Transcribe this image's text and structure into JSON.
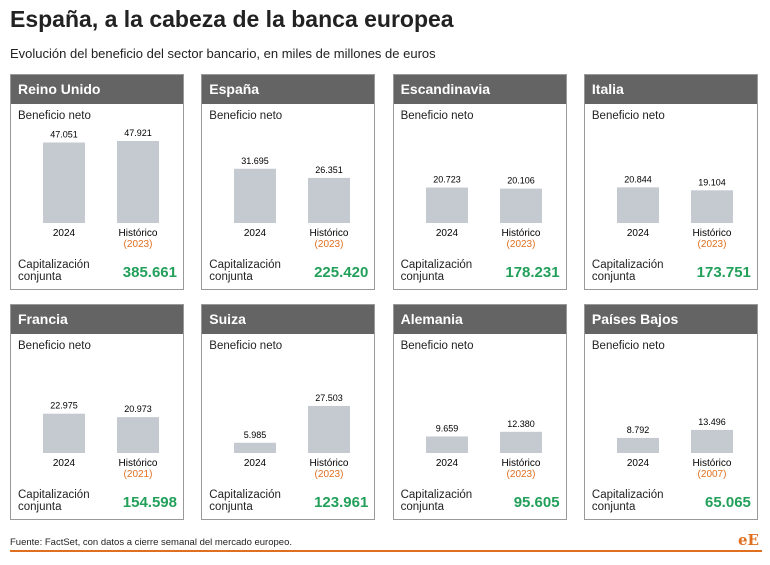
{
  "title": "España, a la cabeza de la banca europea",
  "subtitle": "Evolución del beneficio del sector bancario, en miles de millones de euros",
  "source": "Fuente: FactSet, con datos a cierre semanal del mercado europeo.",
  "logo": "eE",
  "chart_data": [
    {
      "type": "bar",
      "title": "Reino Unido",
      "subtitle": "Beneficio neto",
      "categories": [
        "2024",
        "Histórico"
      ],
      "category_notes": [
        null,
        "(2023)"
      ],
      "values": [
        47051,
        47921
      ],
      "value_labels": [
        "47.051",
        "47.921"
      ],
      "color": "#c5cad1",
      "capitalization": {
        "label": "Capitalización conjunta",
        "value": 385661,
        "value_label": "385.661"
      }
    },
    {
      "type": "bar",
      "title": "España",
      "subtitle": "Beneficio neto",
      "categories": [
        "2024",
        "Histórico"
      ],
      "category_notes": [
        null,
        "(2023)"
      ],
      "values": [
        31695,
        26351
      ],
      "value_labels": [
        "31.695",
        "26.351"
      ],
      "color": "#c5cad1",
      "capitalization": {
        "label": "Capitalización conjunta",
        "value": 225420,
        "value_label": "225.420"
      }
    },
    {
      "type": "bar",
      "title": "Escandinavia",
      "subtitle": "Beneficio neto",
      "categories": [
        "2024",
        "Histórico"
      ],
      "category_notes": [
        null,
        "(2023)"
      ],
      "values": [
        20723,
        20106
      ],
      "value_labels": [
        "20.723",
        "20.106"
      ],
      "color": "#c5cad1",
      "capitalization": {
        "label": "Capitalización conjunta",
        "value": 178231,
        "value_label": "178.231"
      }
    },
    {
      "type": "bar",
      "title": "Italia",
      "subtitle": "Beneficio neto",
      "categories": [
        "2024",
        "Histórico"
      ],
      "category_notes": [
        null,
        "(2023)"
      ],
      "values": [
        20844,
        19104
      ],
      "value_labels": [
        "20.844",
        "19.104"
      ],
      "color": "#c5cad1",
      "capitalization": {
        "label": "Capitalización conjunta",
        "value": 173751,
        "value_label": "173.751"
      }
    },
    {
      "type": "bar",
      "title": "Francia",
      "subtitle": "Beneficio neto",
      "categories": [
        "2024",
        "Histórico"
      ],
      "category_notes": [
        null,
        "(2021)"
      ],
      "values": [
        22975,
        20973
      ],
      "value_labels": [
        "22.975",
        "20.973"
      ],
      "color": "#c5cad1",
      "capitalization": {
        "label": "Capitalización conjunta",
        "value": 154598,
        "value_label": "154.598"
      }
    },
    {
      "type": "bar",
      "title": "Suiza",
      "subtitle": "Beneficio neto",
      "categories": [
        "2024",
        "Histórico"
      ],
      "category_notes": [
        null,
        "(2023)"
      ],
      "values": [
        5985,
        27503
      ],
      "value_labels": [
        "5.985",
        "27.503"
      ],
      "color": "#c5cad1",
      "capitalization": {
        "label": "Capitalización conjunta",
        "value": 123961,
        "value_label": "123.961"
      }
    },
    {
      "type": "bar",
      "title": "Alemania",
      "subtitle": "Beneficio neto",
      "categories": [
        "2024",
        "Histórico"
      ],
      "category_notes": [
        null,
        "(2023)"
      ],
      "values": [
        9659,
        12380
      ],
      "value_labels": [
        "9.659",
        "12.380"
      ],
      "color": "#c5cad1",
      "capitalization": {
        "label": "Capitalización conjunta",
        "value": 95605,
        "value_label": "95.605"
      }
    },
    {
      "type": "bar",
      "title": "Países Bajos",
      "subtitle": "Beneficio neto",
      "categories": [
        "2024",
        "Histórico"
      ],
      "category_notes": [
        null,
        "(2007)"
      ],
      "values": [
        8792,
        13496
      ],
      "value_labels": [
        "8.792",
        "13.496"
      ],
      "color": "#c5cad1",
      "capitalization": {
        "label": "Capitalización conjunta",
        "value": 65065,
        "value_label": "65.065"
      }
    }
  ]
}
